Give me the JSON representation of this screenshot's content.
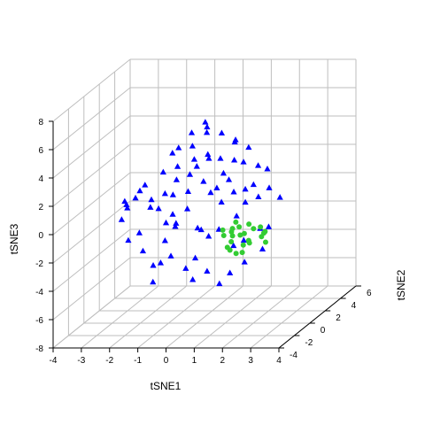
{
  "chart_data": {
    "type": "scatter",
    "projection": "3d",
    "title": "",
    "xlabel": "tSNE1",
    "ylabel": "tSNE2",
    "zlabel": "tSNE3",
    "xlim": [
      -4,
      4
    ],
    "ylim": [
      -4,
      6
    ],
    "zlim": [
      -8,
      8
    ],
    "x_ticks": [
      "-4",
      "-3",
      "-2",
      "-1",
      "0",
      "1",
      "2",
      "3",
      "4"
    ],
    "y_ticks": [
      "-4",
      "-2",
      "0",
      "2",
      "4",
      "6"
    ],
    "z_ticks": [
      "-8",
      "-6",
      "-4",
      "-2",
      "0",
      "2",
      "4",
      "6",
      "8"
    ],
    "grid": true,
    "legend": "none",
    "series": [
      {
        "marker": "triangle",
        "color": "#0000ff",
        "points": [
          [
            -2.5,
            -0.2,
            0.7
          ],
          [
            -2.3,
            -0.6,
            0.4
          ],
          [
            -2.6,
            0.4,
            0.2
          ],
          [
            -2.2,
            0.1,
            0.8
          ],
          [
            -2.0,
            0.6,
            1.5
          ],
          [
            -1.7,
            0.2,
            0.1
          ],
          [
            -1.8,
            -0.8,
            1.7
          ],
          [
            -1.5,
            -0.4,
            0.9
          ],
          [
            -1.6,
            0.9,
            -0.3
          ],
          [
            -1.3,
            0.4,
            2.5
          ],
          [
            -1.1,
            -0.1,
            1.2
          ],
          [
            -1.2,
            1.3,
            0.5
          ],
          [
            -0.8,
            0.3,
            2.0
          ],
          [
            -0.9,
            -0.7,
            -0.6
          ],
          [
            -0.5,
            0.7,
            1.0
          ],
          [
            -0.6,
            -0.3,
            3.2
          ],
          [
            -0.3,
            1.1,
            2.6
          ],
          [
            -0.2,
            -0.5,
            0.3
          ],
          [
            0.1,
            0.5,
            1.8
          ],
          [
            0.0,
            -0.9,
            2.9
          ],
          [
            0.3,
            1.5,
            0.9
          ],
          [
            0.4,
            0.1,
            3.6
          ],
          [
            0.6,
            -0.4,
            1.4
          ],
          [
            0.7,
            0.9,
            2.2
          ],
          [
            0.9,
            -0.1,
            0.6
          ],
          [
            1.0,
            1.2,
            3.0
          ],
          [
            1.2,
            0.4,
            1.1
          ],
          [
            1.3,
            -0.6,
            2.4
          ],
          [
            1.5,
            0.8,
            0.2
          ],
          [
            1.6,
            0.2,
            3.3
          ],
          [
            1.8,
            -0.3,
            1.6
          ],
          [
            1.9,
            1.0,
            2.7
          ],
          [
            2.1,
            0.3,
            0.8
          ],
          [
            2.2,
            -0.7,
            2.1
          ],
          [
            2.4,
            0.6,
            1.3
          ],
          [
            2.5,
            0.0,
            2.9
          ],
          [
            2.7,
            0.9,
            0.5
          ],
          [
            -0.7,
            0.2,
            4.3
          ],
          [
            -0.4,
            0.8,
            5.1
          ],
          [
            -0.1,
            -0.2,
            4.6
          ],
          [
            0.2,
            0.6,
            5.6
          ],
          [
            0.5,
            -0.4,
            4.1
          ],
          [
            0.8,
            0.3,
            5.3
          ],
          [
            1.1,
            0.9,
            4.4
          ],
          [
            1.4,
            -0.1,
            5.0
          ],
          [
            1.7,
            0.5,
            4.2
          ],
          [
            -1.0,
            0.5,
            3.8
          ],
          [
            0.0,
            1.3,
            4.9
          ],
          [
            1.0,
            -0.6,
            3.9
          ],
          [
            0.3,
            0.0,
            6.2
          ],
          [
            -0.2,
            0.4,
            3.4
          ],
          [
            -2.8,
            0.5,
            -0.9
          ],
          [
            -2.4,
            -0.1,
            -2.1
          ],
          [
            -2.1,
            0.7,
            -3.2
          ],
          [
            -1.9,
            -0.5,
            -1.4
          ],
          [
            -1.6,
            0.2,
            -4.0
          ],
          [
            -1.4,
            1.0,
            -2.6
          ],
          [
            -1.2,
            -0.3,
            -3.6
          ],
          [
            -0.9,
            0.6,
            -1.2
          ],
          [
            -0.7,
            -0.8,
            -2.9
          ],
          [
            -0.5,
            0.4,
            -4.3
          ],
          [
            -0.3,
            1.2,
            -1.8
          ],
          [
            0.0,
            -0.2,
            -3.3
          ],
          [
            0.2,
            0.8,
            -2.2
          ],
          [
            0.5,
            -0.5,
            -4.1
          ],
          [
            0.7,
            0.3,
            -1.5
          ],
          [
            1.0,
            1.1,
            -3.0
          ],
          [
            1.2,
            -0.1,
            -4.4
          ],
          [
            1.5,
            0.6,
            -2.4
          ],
          [
            1.8,
            -0.4,
            -3.5
          ],
          [
            2.0,
            0.9,
            -1.7
          ],
          [
            2.3,
            0.1,
            -2.8
          ],
          [
            -1.1,
            0.9,
            -0.7
          ],
          [
            -0.6,
            -0.6,
            -0.9
          ],
          [
            0.4,
            -0.9,
            -1.0
          ],
          [
            1.3,
            0.4,
            -0.6
          ],
          [
            2.6,
            -0.2,
            -1.1
          ],
          [
            -0.2,
            0.2,
            -5.0
          ],
          [
            0.8,
            0.0,
            -5.2
          ],
          [
            -1.5,
            -0.2,
            -5.0
          ]
        ]
      },
      {
        "marker": "circle",
        "color": "#33cc33",
        "points": [
          [
            1.0,
            -0.3,
            -1.3
          ],
          [
            1.2,
            0.1,
            -1.6
          ],
          [
            1.4,
            -0.5,
            -1.1
          ],
          [
            1.6,
            0.3,
            -1.8
          ],
          [
            1.1,
            0.6,
            -2.1
          ],
          [
            1.3,
            -0.8,
            -2.3
          ],
          [
            1.5,
            0.0,
            -1.2
          ],
          [
            1.7,
            -0.2,
            -2.4
          ],
          [
            1.9,
            0.4,
            -1.5
          ],
          [
            2.0,
            -0.6,
            -1.9
          ],
          [
            2.2,
            0.2,
            -1.3
          ],
          [
            1.0,
            0.8,
            -2.6
          ],
          [
            1.2,
            -0.1,
            -2.8
          ],
          [
            1.4,
            0.5,
            -2.0
          ],
          [
            1.8,
            -0.7,
            -2.7
          ],
          [
            2.1,
            0.7,
            -2.2
          ],
          [
            2.4,
            -0.1,
            -1.6
          ],
          [
            1.6,
            0.9,
            -1.4
          ],
          [
            0.9,
            0.2,
            -1.9
          ],
          [
            1.5,
            -0.4,
            -2.9
          ],
          [
            2.3,
            0.5,
            -2.5
          ],
          [
            1.3,
            0.3,
            -1.0
          ],
          [
            1.7,
            0.6,
            -2.6
          ],
          [
            2.5,
            -0.3,
            -1.4
          ]
        ]
      }
    ]
  }
}
